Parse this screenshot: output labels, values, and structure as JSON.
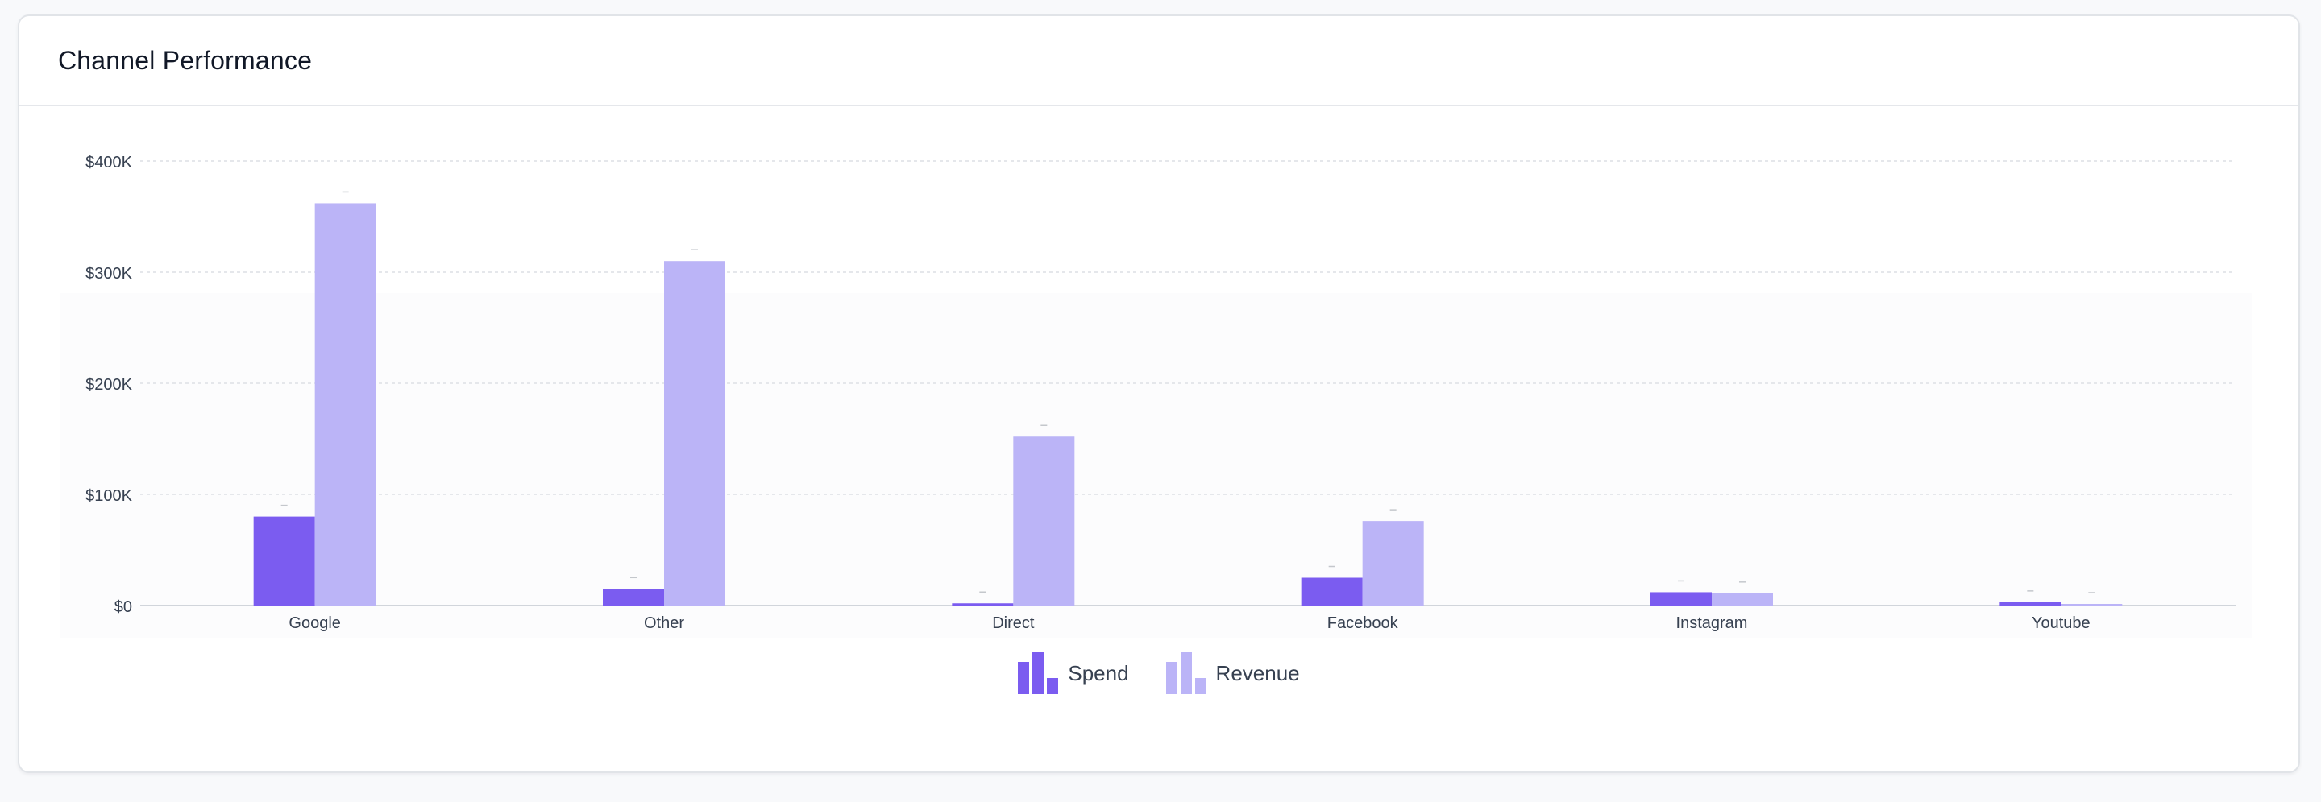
{
  "card": {
    "title": "Channel Performance"
  },
  "colors": {
    "spend": "#7b5cf0",
    "revenue": "#bbb4f7",
    "grid": "#e5e7eb",
    "axis_text": "#374151",
    "baseline": "#d1d5db"
  },
  "chart_data": {
    "type": "bar",
    "categories": [
      "Google",
      "Other",
      "Direct",
      "Facebook",
      "Instagram",
      "Youtube"
    ],
    "series": [
      {
        "name": "Spend",
        "values": [
          80000,
          15000,
          2000,
          25000,
          12000,
          3000
        ]
      },
      {
        "name": "Revenue",
        "values": [
          362000,
          310000,
          152000,
          76000,
          11000,
          1000
        ]
      }
    ],
    "y_ticks": [
      "$0",
      "$100K",
      "$200K",
      "$300K",
      "$400K"
    ],
    "y_tick_values": [
      0,
      100000,
      200000,
      300000,
      400000
    ],
    "ylim": [
      0,
      400000
    ],
    "title": "",
    "xlabel": "",
    "ylabel": "",
    "grid": true,
    "legend_position": "bottom-center"
  },
  "legend": {
    "items": [
      {
        "label": "Spend",
        "icon": "bar-chart-icon"
      },
      {
        "label": "Revenue",
        "icon": "bar-chart-icon"
      }
    ]
  }
}
